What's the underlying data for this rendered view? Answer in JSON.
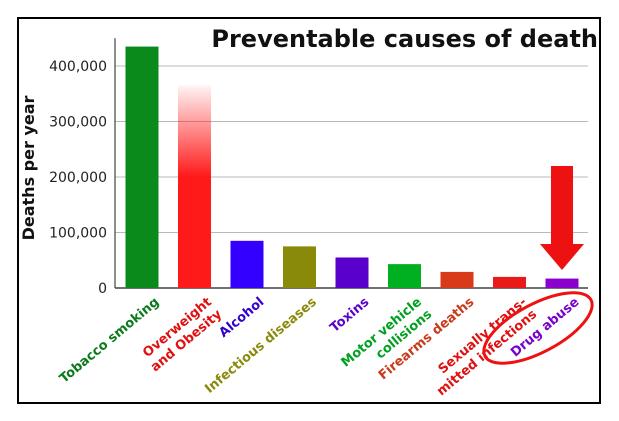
{
  "chart_data": {
    "type": "bar",
    "title": "Preventable causes of death",
    "xlabel": "",
    "ylabel": "Deaths per year",
    "ylim": [
      0,
      450000
    ],
    "yticks": [
      0,
      100000,
      200000,
      300000,
      400000
    ],
    "ytick_labels": [
      "0",
      "100,000",
      "200,000",
      "300,000",
      "400,000"
    ],
    "grid": true,
    "categories": [
      "Tobacco smoking",
      "Overweight and Obesity",
      "Alcohol",
      "Infectious diseases",
      "Toxins",
      "Motor vehicle collisions",
      "Firearms deaths",
      "Sexually transmitted infections",
      "Drug abuse"
    ],
    "category_label_lines": [
      [
        "Tobacco smoking"
      ],
      [
        "Overweight",
        "and Obesity"
      ],
      [
        "Alcohol"
      ],
      [
        "Infectious diseases"
      ],
      [
        "Toxins"
      ],
      [
        "Motor vehicle",
        "collisions"
      ],
      [
        "Firearms deaths"
      ],
      [
        "Sexually trans-",
        "mitted infections"
      ],
      [
        "Drug abuse"
      ]
    ],
    "values": [
      435000,
      365000,
      85000,
      75000,
      55000,
      43000,
      29000,
      20000,
      17000
    ],
    "colors": [
      "#0a8a1a",
      "#ff1a1a",
      "#3300ff",
      "#8a8a0a",
      "#5a00cc",
      "#00b020",
      "#d93a1a",
      "#e81a1a",
      "#8a00cc"
    ],
    "label_colors": [
      "#0a7a1a",
      "#e01010",
      "#3300cc",
      "#8a8a0a",
      "#5a00cc",
      "#00a020",
      "#c83a1a",
      "#e01010",
      "#7a00cc"
    ],
    "gradient_fade_bar_index": 1,
    "highlight_index": 8,
    "highlight_color": "#ee1111"
  }
}
